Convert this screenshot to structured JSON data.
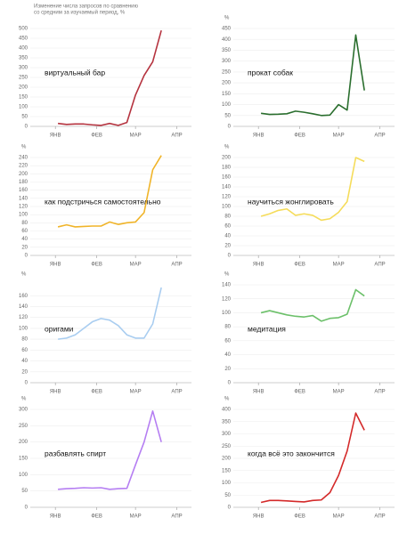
{
  "header": {
    "title": [
      "Изменение числа запросов по сравнению",
      "со средним за изучаемый период, %"
    ]
  },
  "chart_data": [
    {
      "type": "line",
      "title": "виртуальный бар",
      "x": [
        0,
        1,
        2,
        3,
        4,
        5,
        6,
        7,
        8,
        9,
        10,
        11,
        12
      ],
      "series": [
        {
          "color": "#b5333f",
          "values": [
            15,
            10,
            12,
            12,
            8,
            5,
            15,
            5,
            20,
            160,
            260,
            330,
            490
          ]
        }
      ],
      "ylim": [
        0,
        500
      ],
      "yticks": [
        0,
        50,
        100,
        150,
        200,
        250,
        300,
        350,
        400,
        450,
        500
      ],
      "xlim": [
        -2.8,
        15.5
      ],
      "xticks": [
        {
          "value": -0.3,
          "label": "ЯНВ"
        },
        {
          "value": 4.5,
          "label": "ФЕВ"
        },
        {
          "value": 9,
          "label": "МАР"
        },
        {
          "value": 13.8,
          "label": "АПР"
        }
      ],
      "grid": true
    },
    {
      "type": "line",
      "title": "прокат собак",
      "y_label": "%",
      "x": [
        0,
        1,
        2,
        3,
        4,
        5,
        6,
        7,
        8,
        9,
        10,
        11,
        12
      ],
      "series": [
        {
          "color": "#2a6e2e",
          "values": [
            60,
            55,
            56,
            58,
            70,
            65,
            58,
            50,
            52,
            100,
            75,
            420,
            165
          ]
        }
      ],
      "ylim": [
        0,
        450
      ],
      "yticks": [
        0,
        50,
        100,
        150,
        200,
        250,
        300,
        350,
        400,
        450
      ],
      "xlim": [
        -2.8,
        15.5
      ],
      "xticks": [
        {
          "value": -0.3,
          "label": "ЯНВ"
        },
        {
          "value": 4.5,
          "label": "ФЕВ"
        },
        {
          "value": 9,
          "label": "МАР"
        },
        {
          "value": 13.8,
          "label": "АПР"
        }
      ],
      "grid": true
    },
    {
      "type": "line",
      "title": "как подстричься самостоятельно",
      "y_label": "%",
      "x": [
        0,
        1,
        2,
        3,
        4,
        5,
        6,
        7,
        8,
        9,
        10,
        11,
        12
      ],
      "series": [
        {
          "color": "#f0b429",
          "values": [
            70,
            75,
            70,
            71,
            72,
            72,
            82,
            76,
            80,
            82,
            105,
            210,
            245
          ]
        }
      ],
      "ylim": [
        0,
        240
      ],
      "yticks": [
        0,
        20,
        40,
        60,
        80,
        100,
        120,
        140,
        160,
        180,
        200,
        220,
        240
      ],
      "xlim": [
        -2.8,
        15.5
      ],
      "xticks": [
        {
          "value": -0.3,
          "label": "ЯНВ"
        },
        {
          "value": 4.5,
          "label": "ФЕВ"
        },
        {
          "value": 9,
          "label": "МАР"
        },
        {
          "value": 13.8,
          "label": "АПР"
        }
      ],
      "grid": true
    },
    {
      "type": "line",
      "title": "научиться жонглировать",
      "y_label": "%",
      "x": [
        0,
        1,
        2,
        3,
        4,
        5,
        6,
        7,
        8,
        9,
        10,
        11,
        12
      ],
      "series": [
        {
          "color": "#f5dc5a",
          "values": [
            80,
            85,
            92,
            95,
            82,
            85,
            82,
            72,
            75,
            88,
            110,
            200,
            192
          ]
        }
      ],
      "ylim": [
        0,
        200
      ],
      "yticks": [
        0,
        20,
        40,
        60,
        80,
        100,
        120,
        140,
        160,
        180,
        200
      ],
      "xlim": [
        -2.8,
        15.5
      ],
      "xticks": [
        {
          "value": -0.3,
          "label": "ЯНВ"
        },
        {
          "value": 4.5,
          "label": "ФЕВ"
        },
        {
          "value": 9,
          "label": "МАР"
        },
        {
          "value": 13.8,
          "label": "АПР"
        }
      ],
      "grid": true
    },
    {
      "type": "line",
      "title": "оригами",
      "y_label": "%",
      "x": [
        0,
        1,
        2,
        3,
        4,
        5,
        6,
        7,
        8,
        9,
        10,
        11,
        12
      ],
      "series": [
        {
          "color": "#a9cdf0",
          "values": [
            80,
            82,
            88,
            100,
            112,
            118,
            115,
            105,
            88,
            82,
            82,
            108,
            175
          ]
        }
      ],
      "ylim": [
        0,
        180
      ],
      "yticks": [
        0,
        20,
        40,
        60,
        80,
        100,
        120,
        140,
        160
      ],
      "xlim": [
        -2.8,
        15.5
      ],
      "xticks": [
        {
          "value": -0.3,
          "label": "ЯНВ"
        },
        {
          "value": 4.5,
          "label": "ФЕВ"
        },
        {
          "value": 9,
          "label": "МАР"
        },
        {
          "value": 13.8,
          "label": "АПР"
        }
      ],
      "grid": true
    },
    {
      "type": "line",
      "title": "медитация",
      "y_label": "%",
      "x": [
        0,
        1,
        2,
        3,
        4,
        5,
        6,
        7,
        8,
        9,
        10,
        11,
        12
      ],
      "series": [
        {
          "color": "#6cc06a",
          "values": [
            100,
            103,
            100,
            97,
            95,
            94,
            96,
            88,
            92,
            93,
            98,
            133,
            124
          ]
        }
      ],
      "ylim": [
        0,
        140
      ],
      "yticks": [
        0,
        20,
        40,
        60,
        80,
        100,
        120,
        140
      ],
      "xlim": [
        -2.8,
        15.5
      ],
      "xticks": [
        {
          "value": -0.3,
          "label": "ЯНВ"
        },
        {
          "value": 4.5,
          "label": "ФЕВ"
        },
        {
          "value": 9,
          "label": "МАР"
        },
        {
          "value": 13.8,
          "label": "АПР"
        }
      ],
      "grid": true
    },
    {
      "type": "line",
      "title": "разбавлять спирт",
      "y_label": "%",
      "x": [
        0,
        1,
        2,
        3,
        4,
        5,
        6,
        7,
        8,
        9,
        10,
        11,
        12
      ],
      "series": [
        {
          "color": "#b57ef2",
          "values": [
            55,
            57,
            58,
            60,
            59,
            60,
            55,
            57,
            58,
            130,
            200,
            295,
            200
          ]
        }
      ],
      "ylim": [
        0,
        300
      ],
      "yticks": [
        0,
        50,
        100,
        150,
        200,
        250,
        300
      ],
      "xlim": [
        -2.8,
        15.5
      ],
      "xticks": [
        {
          "value": -0.3,
          "label": "ЯНВ"
        },
        {
          "value": 4.5,
          "label": "ФЕВ"
        },
        {
          "value": 9,
          "label": "МАР"
        },
        {
          "value": 13.8,
          "label": "АПР"
        }
      ],
      "grid": true
    },
    {
      "type": "line",
      "title": "когда всё это закончится",
      "y_label": "%",
      "x": [
        0,
        1,
        2,
        3,
        4,
        5,
        6,
        7,
        8,
        9,
        10,
        11,
        12
      ],
      "series": [
        {
          "color": "#d42a2a",
          "values": [
            20,
            28,
            28,
            26,
            24,
            22,
            28,
            30,
            60,
            130,
            230,
            385,
            315
          ]
        }
      ],
      "ylim": [
        0,
        400
      ],
      "yticks": [
        0,
        50,
        100,
        150,
        200,
        250,
        300,
        350,
        400
      ],
      "xlim": [
        -2.8,
        15.5
      ],
      "xticks": [
        {
          "value": -0.3,
          "label": "ЯНВ"
        },
        {
          "value": 4.5,
          "label": "ФЕВ"
        },
        {
          "value": 9,
          "label": "МАР"
        },
        {
          "value": 13.8,
          "label": "АПР"
        }
      ],
      "grid": true
    }
  ]
}
